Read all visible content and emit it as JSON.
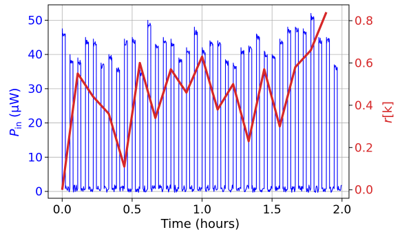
{
  "chart_data": {
    "type": "line",
    "xlabel": "Time (hours)",
    "ylabel_left_main": "P",
    "ylabel_left_sub": "in",
    "ylabel_left_unit": " (μW)",
    "ylabel_right_main": "r",
    "ylabel_right_suffix": "[k]",
    "xlim": [
      -0.1,
      2.05
    ],
    "ylim_left": [
      -2,
      54.5
    ],
    "ylim_right": [
      -0.04,
      0.875
    ],
    "grid": true,
    "x_ticks": [
      {
        "value": 0.0,
        "label": "0.0"
      },
      {
        "value": 0.5,
        "label": "0.5"
      },
      {
        "value": 1.0,
        "label": "1.0"
      },
      {
        "value": 1.5,
        "label": "1.5"
      },
      {
        "value": 2.0,
        "label": "2.0"
      }
    ],
    "y_left_ticks": [
      {
        "value": 0,
        "label": "0"
      },
      {
        "value": 10,
        "label": "10"
      },
      {
        "value": 20,
        "label": "20"
      },
      {
        "value": 30,
        "label": "30"
      },
      {
        "value": 40,
        "label": "40"
      },
      {
        "value": 50,
        "label": "50"
      }
    ],
    "y_right_ticks": [
      {
        "value": 0.0,
        "label": "0.0"
      },
      {
        "value": 0.2,
        "label": "0.2"
      },
      {
        "value": 0.4,
        "label": "0.4"
      },
      {
        "value": 0.6,
        "label": "0.6"
      },
      {
        "value": 0.8,
        "label": "0.8"
      }
    ],
    "series": [
      {
        "axis": "left",
        "color": "#0000ff",
        "kind": "pulses",
        "baseline": 0.8,
        "pulse_width": 0.022,
        "peaks": [
          {
            "x": 0.0,
            "peak": 47.5,
            "plateau": 46.0
          },
          {
            "x": 0.055,
            "peak": 40.0,
            "plateau": 38.0
          },
          {
            "x": 0.111,
            "peak": 39.0,
            "plateau": 37.5
          },
          {
            "x": 0.166,
            "peak": 45.0,
            "plateau": 43.5
          },
          {
            "x": 0.222,
            "peak": 44.5,
            "plateau": 43.0
          },
          {
            "x": 0.277,
            "peak": 37.5,
            "plateau": 36.5
          },
          {
            "x": 0.333,
            "peak": 40.0,
            "plateau": 39.0
          },
          {
            "x": 0.388,
            "peak": 36.0,
            "plateau": 35.5
          },
          {
            "x": 0.444,
            "peak": 44.5,
            "plateau": 43.5
          },
          {
            "x": 0.5,
            "peak": 45.0,
            "plateau": 44.0
          },
          {
            "x": 0.555,
            "peak": 35.5,
            "plateau": 34.0
          },
          {
            "x": 0.611,
            "peak": 50.0,
            "plateau": 48.5
          },
          {
            "x": 0.666,
            "peak": 43.0,
            "plateau": 42.0
          },
          {
            "x": 0.722,
            "peak": 45.0,
            "plateau": 43.5
          },
          {
            "x": 0.777,
            "peak": 44.5,
            "plateau": 43.0
          },
          {
            "x": 0.833,
            "peak": 39.0,
            "plateau": 38.0
          },
          {
            "x": 0.888,
            "peak": 42.0,
            "plateau": 41.0
          },
          {
            "x": 0.944,
            "peak": 48.0,
            "plateau": 46.5
          },
          {
            "x": 1.0,
            "peak": 42.0,
            "plateau": 40.5
          },
          {
            "x": 1.055,
            "peak": 44.0,
            "plateau": 43.0
          },
          {
            "x": 1.111,
            "peak": 44.0,
            "plateau": 43.0
          },
          {
            "x": 1.166,
            "peak": 38.5,
            "plateau": 37.5
          },
          {
            "x": 1.222,
            "peak": 37.5,
            "plateau": 36.5
          },
          {
            "x": 1.277,
            "peak": 42.0,
            "plateau": 41.0
          },
          {
            "x": 1.333,
            "peak": 42.5,
            "plateau": 41.5
          },
          {
            "x": 1.388,
            "peak": 46.0,
            "plateau": 45.0
          },
          {
            "x": 1.444,
            "peak": 41.0,
            "plateau": 40.0
          },
          {
            "x": 1.5,
            "peak": 40.0,
            "plateau": 39.0
          },
          {
            "x": 1.555,
            "peak": 44.5,
            "plateau": 43.5
          },
          {
            "x": 1.611,
            "peak": 48.0,
            "plateau": 47.0
          },
          {
            "x": 1.666,
            "peak": 48.0,
            "plateau": 47.0
          },
          {
            "x": 1.722,
            "peak": 47.5,
            "plateau": 46.5
          },
          {
            "x": 1.777,
            "peak": 52.0,
            "plateau": 50.5
          },
          {
            "x": 1.833,
            "peak": 45.0,
            "plateau": 44.0
          },
          {
            "x": 1.888,
            "peak": 45.0,
            "plateau": 44.0
          },
          {
            "x": 1.944,
            "peak": 37.0,
            "plateau": 36.0
          }
        ]
      },
      {
        "axis": "right",
        "color": "#d62728",
        "kind": "line",
        "x": [
          0.0,
          0.111,
          0.222,
          0.333,
          0.444,
          0.555,
          0.666,
          0.777,
          0.888,
          1.0,
          1.111,
          1.222,
          1.333,
          1.444,
          1.555,
          1.666,
          1.777,
          1.888
        ],
        "y": [
          0.0,
          0.55,
          0.44,
          0.36,
          0.11,
          0.6,
          0.34,
          0.57,
          0.46,
          0.63,
          0.38,
          0.5,
          0.23,
          0.57,
          0.3,
          0.58,
          0.66,
          0.84
        ]
      }
    ]
  },
  "colors": {
    "left_axis": "#0000ff",
    "right_axis": "#d62728",
    "grid": "#b0b0b0",
    "frame": "#000000"
  }
}
